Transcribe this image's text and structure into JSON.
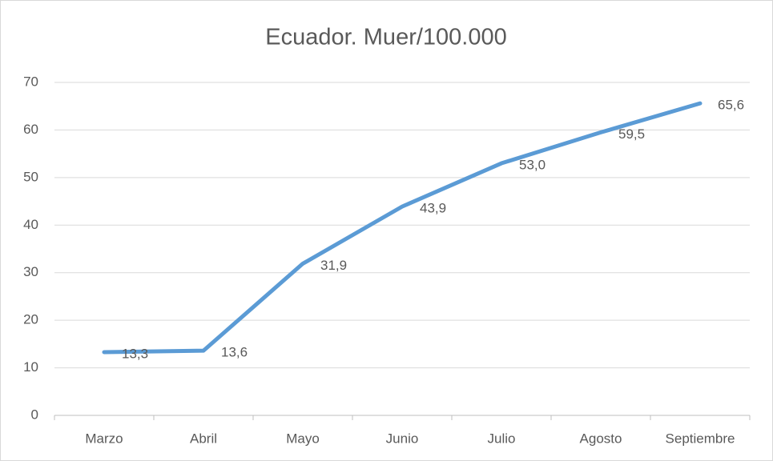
{
  "chart_data": {
    "type": "line",
    "title": "Ecuador. Muer/100.000",
    "categories": [
      "Marzo",
      "Abril",
      "Mayo",
      "Junio",
      "Julio",
      "Agosto",
      "Septiembre"
    ],
    "values": [
      13.3,
      13.6,
      31.9,
      43.9,
      53.0,
      59.5,
      65.6
    ],
    "value_labels": [
      "13,3",
      "13,6",
      "31,9",
      "43,9",
      "53,0",
      "59,5",
      "65,6"
    ],
    "color": "#5b9bd5",
    "ylim": [
      0,
      70
    ],
    "yticks": [
      0,
      10,
      20,
      30,
      40,
      50,
      60,
      70
    ],
    "grid": true
  }
}
